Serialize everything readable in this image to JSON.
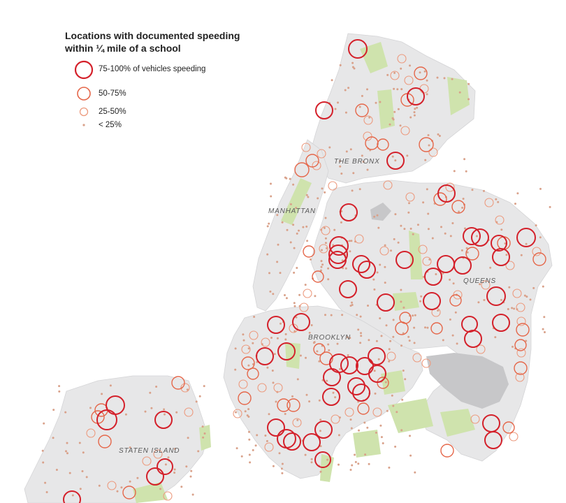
{
  "legend": {
    "title_line1": "Locations with documented speeding",
    "title_line2": "within ¼ mile of a school",
    "items": [
      {
        "label": "75-100% of vehicles speeding"
      },
      {
        "label": "50-75%"
      },
      {
        "label": "25-50%"
      },
      {
        "label": "< 25%"
      }
    ]
  },
  "boroughs": {
    "bronx": "THE BRONX",
    "manhattan": "MANHATTAN",
    "queens": "QUEENS",
    "brooklyn": "BROOKLYN",
    "staten_island": "STATEN ISLAND"
  },
  "colors": {
    "land": "#e7e7e8",
    "park": "#cfe3ad",
    "water_body": "#c7c7c9",
    "high": "#d4202a",
    "mid": "#e5674a",
    "low": "#ec9a7e",
    "dot": "#d9a18a"
  }
}
